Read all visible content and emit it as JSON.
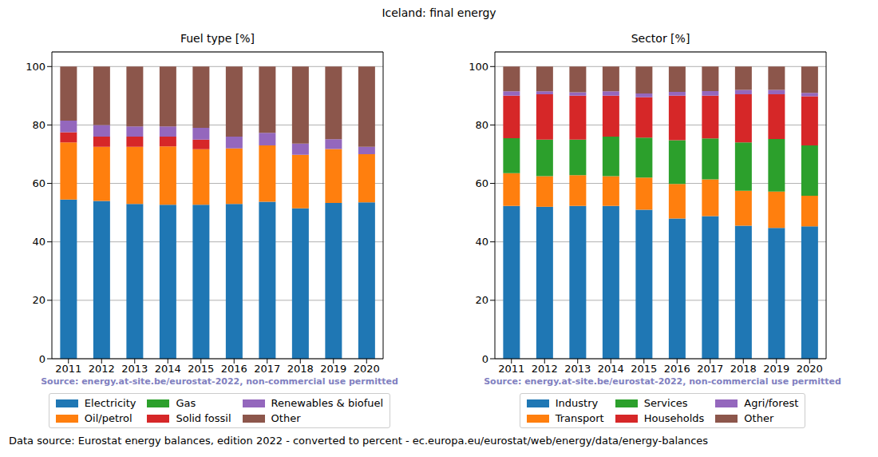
{
  "title": "Iceland: final energy",
  "footer": "Data source: Eurostat energy balances, edition 2022 - converted to percent - ec.europa.eu/eurostat/web/energy/data/energy-balances",
  "chart_data": [
    {
      "type": "bar",
      "title": "Fuel type [%]",
      "annotations": [
        "Source: energy.at-site.be/eurostat-2022, non-commercial use permitted"
      ],
      "categories": [
        "2011",
        "2012",
        "2013",
        "2014",
        "2015",
        "2016",
        "2017",
        "2018",
        "2019",
        "2020"
      ],
      "series": [
        {
          "name": "Electricity",
          "color": "#1f77b4",
          "values": [
            54.5,
            54,
            53,
            52.7,
            52.7,
            53,
            53.7,
            51.5,
            53.3,
            53.5
          ]
        },
        {
          "name": "Oil/petrol",
          "color": "#ff7f0e",
          "values": [
            19.5,
            18.5,
            19.5,
            20,
            19,
            19,
            19.3,
            18.3,
            18.5,
            16.5
          ]
        },
        {
          "name": "Gas",
          "color": "#2ca02c",
          "values": [
            0,
            0,
            0,
            0,
            0,
            0,
            0,
            0,
            0,
            0
          ]
        },
        {
          "name": "Solid fossil",
          "color": "#d62728",
          "values": [
            3.5,
            3.5,
            3.5,
            3.3,
            3.3,
            0,
            0,
            0,
            0,
            0
          ]
        },
        {
          "name": "Renewables & biofuel",
          "color": "#9467bd",
          "values": [
            4,
            4,
            3.5,
            3.5,
            4,
            4,
            4.3,
            3.8,
            3.3,
            2.5
          ]
        },
        {
          "name": "Other",
          "color": "#8c564b",
          "values": [
            18.5,
            20,
            20.5,
            20.5,
            21,
            24,
            22.7,
            26.4,
            24.9,
            27.5
          ]
        }
      ],
      "ylim": [
        0,
        105
      ],
      "yticks": [
        0,
        20,
        40,
        60,
        80,
        100
      ],
      "stacked": true,
      "grid": true,
      "legend": "bottom"
    },
    {
      "type": "bar",
      "title": "Sector [%]",
      "annotations": [
        "Source: energy.at-site.be/eurostat-2022, non-commercial use permitted"
      ],
      "categories": [
        "2011",
        "2012",
        "2013",
        "2014",
        "2015",
        "2016",
        "2017",
        "2018",
        "2019",
        "2020"
      ],
      "series": [
        {
          "name": "Industry",
          "color": "#1f77b4",
          "values": [
            52.3,
            52,
            52.3,
            52.3,
            51,
            48,
            48.8,
            45.5,
            44.8,
            45.3
          ]
        },
        {
          "name": "Transport",
          "color": "#ff7f0e",
          "values": [
            11.2,
            10.5,
            10.5,
            10.2,
            11,
            11.8,
            12.6,
            12,
            12.4,
            10.5
          ]
        },
        {
          "name": "Services",
          "color": "#2ca02c",
          "values": [
            12,
            12.5,
            12.2,
            13.5,
            13.7,
            15,
            14,
            16.5,
            18,
            17.2
          ]
        },
        {
          "name": "Households",
          "color": "#d62728",
          "values": [
            14.5,
            15.5,
            15,
            14,
            13.8,
            15.2,
            14.6,
            16.5,
            15.3,
            16.8
          ]
        },
        {
          "name": "Agri/forest",
          "color": "#9467bd",
          "values": [
            1.5,
            1,
            1.2,
            1.5,
            1.3,
            1.3,
            1.6,
            1.5,
            1.5,
            1.2
          ]
        },
        {
          "name": "Other",
          "color": "#8c564b",
          "values": [
            8.5,
            8.5,
            8.8,
            8.5,
            9.2,
            8.7,
            8.4,
            8,
            8,
            9
          ]
        }
      ],
      "ylim": [
        0,
        105
      ],
      "yticks": [
        0,
        20,
        40,
        60,
        80,
        100
      ],
      "stacked": true,
      "grid": true,
      "legend": "bottom"
    }
  ]
}
